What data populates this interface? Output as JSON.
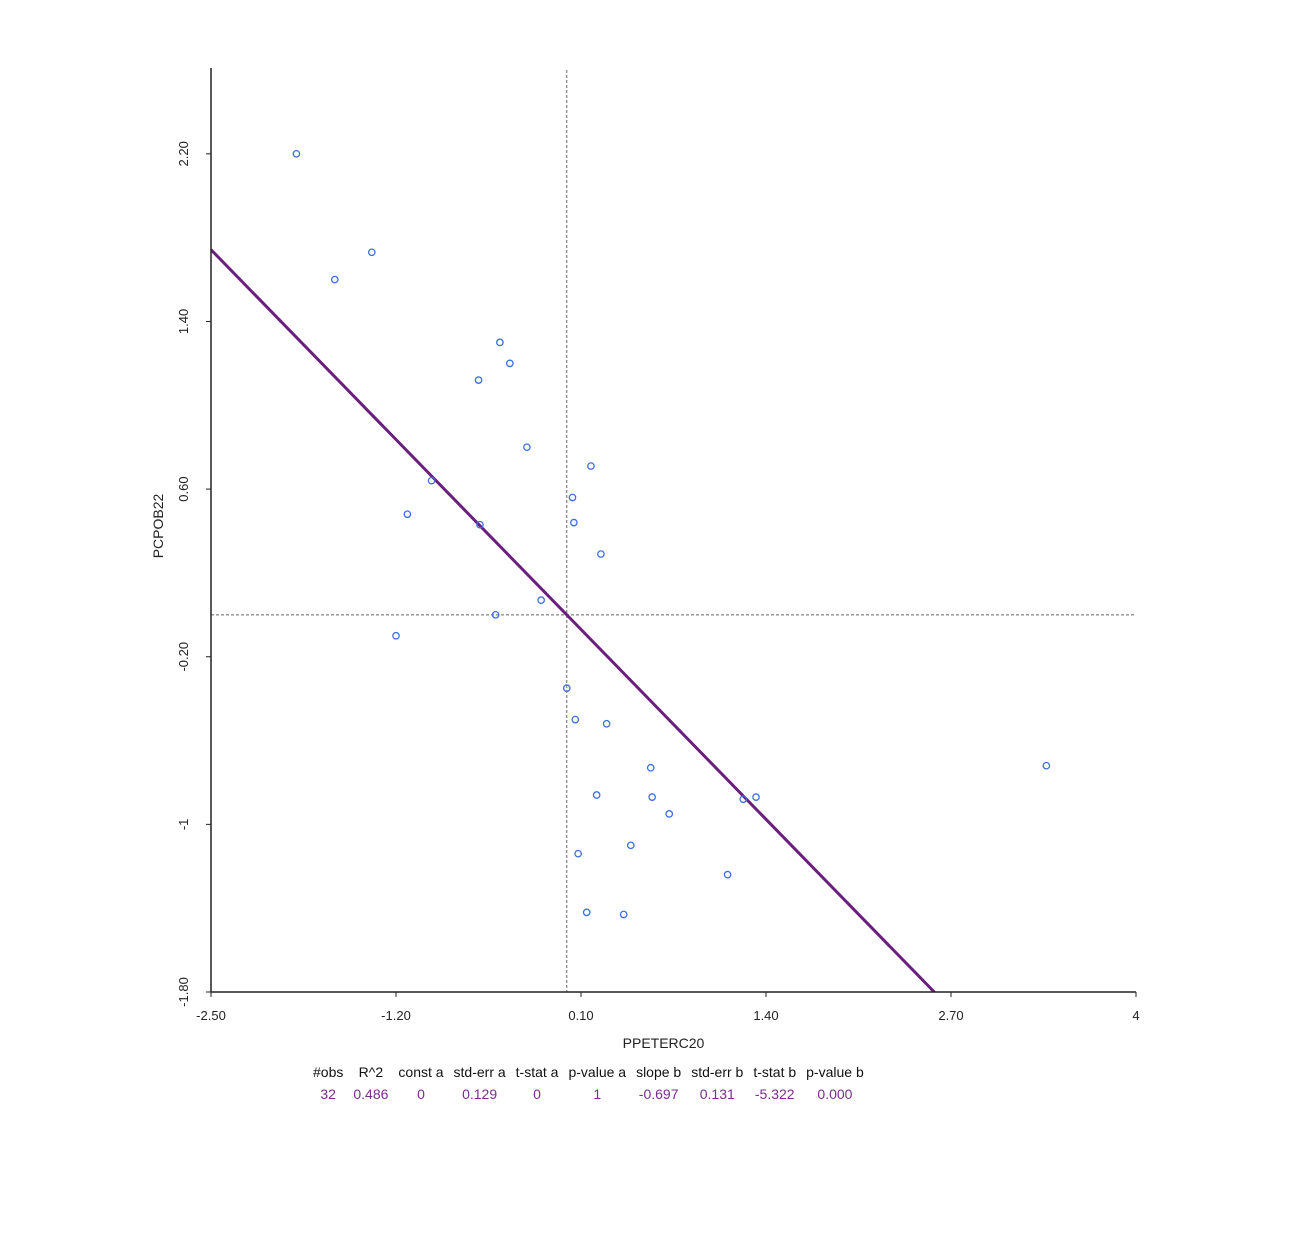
{
  "chart_data": {
    "type": "scatter",
    "xlabel": "PPETERC20",
    "ylabel": "PCPOB22",
    "xlim": [
      -2.5,
      4
    ],
    "ylim": [
      -1.8,
      2.6
    ],
    "x_ticks": [
      "-2.50",
      "-1.20",
      "0.10",
      "1.40",
      "2.70",
      "4"
    ],
    "x_tick_values": [
      -2.5,
      -1.2,
      0.1,
      1.4,
      2.7,
      4
    ],
    "y_ticks": [
      "-1.80",
      "-1",
      "-0.20",
      "0.60",
      "1.40",
      "2.20"
    ],
    "y_tick_values": [
      -1.8,
      -1,
      -0.2,
      0.6,
      1.4,
      2.2
    ],
    "reference_lines": {
      "x": 0.0,
      "y": 0.0
    },
    "regression": {
      "intercept": 0,
      "slope": -0.697
    },
    "colors": {
      "points": "#3b6fe0",
      "fit_line": "#6b1f7c",
      "stats_values": "#7b2c8c"
    },
    "points": [
      {
        "x": -1.9,
        "y": 2.2
      },
      {
        "x": -1.63,
        "y": 1.6
      },
      {
        "x": -1.37,
        "y": 1.73
      },
      {
        "x": -1.2,
        "y": -0.1
      },
      {
        "x": -1.12,
        "y": 0.48
      },
      {
        "x": -0.95,
        "y": 0.64
      },
      {
        "x": -0.62,
        "y": 1.12
      },
      {
        "x": -0.61,
        "y": 0.43
      },
      {
        "x": -0.5,
        "y": 0.0
      },
      {
        "x": -0.47,
        "y": 1.3
      },
      {
        "x": -0.4,
        "y": 1.2
      },
      {
        "x": -0.28,
        "y": 0.8
      },
      {
        "x": -0.18,
        "y": 0.07
      },
      {
        "x": 0.0,
        "y": -0.35
      },
      {
        "x": 0.04,
        "y": 0.56
      },
      {
        "x": 0.05,
        "y": 0.44
      },
      {
        "x": 0.06,
        "y": -0.5
      },
      {
        "x": 0.08,
        "y": -1.14
      },
      {
        "x": 0.14,
        "y": -1.42
      },
      {
        "x": 0.17,
        "y": 0.71
      },
      {
        "x": 0.21,
        "y": -0.86
      },
      {
        "x": 0.24,
        "y": 0.29
      },
      {
        "x": 0.28,
        "y": -0.52
      },
      {
        "x": 0.4,
        "y": -1.43
      },
      {
        "x": 0.45,
        "y": -1.1
      },
      {
        "x": 0.59,
        "y": -0.73
      },
      {
        "x": 0.6,
        "y": -0.87
      },
      {
        "x": 0.72,
        "y": -0.95
      },
      {
        "x": 1.13,
        "y": -1.24
      },
      {
        "x": 1.24,
        "y": -0.88
      },
      {
        "x": 1.33,
        "y": -0.87
      },
      {
        "x": 3.37,
        "y": -0.72
      }
    ]
  },
  "stats": {
    "headers": [
      "#obs",
      "R^2",
      "const a",
      "std-err a",
      "t-stat a",
      "p-value a",
      "slope b",
      "std-err b",
      "t-stat b",
      "p-value b"
    ],
    "values": [
      "32",
      "0.486",
      "0",
      "0.129",
      "0",
      "1",
      "-0.697",
      "0.131",
      "-5.322",
      "0.000"
    ]
  }
}
